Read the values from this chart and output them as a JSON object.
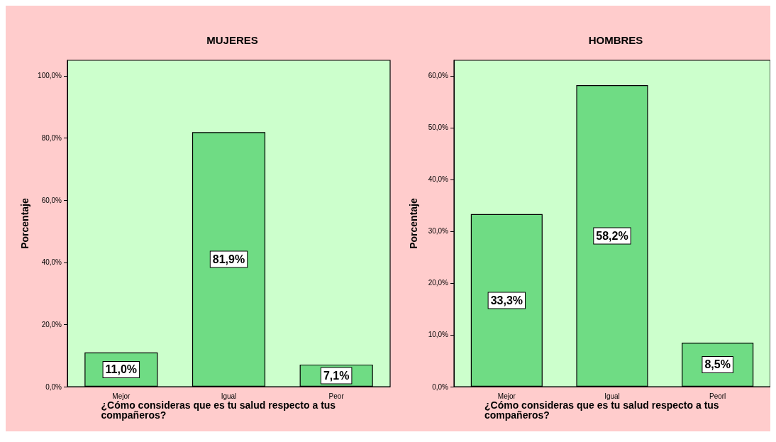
{
  "chart_data": [
    {
      "type": "bar",
      "title": "MUJERES",
      "xlabel": "¿Cómo consideras que es tu salud respecto a tus compañeros?",
      "ylabel": "Porcentaje",
      "categories": [
        "Mejor",
        "Igual",
        "Peor"
      ],
      "values": [
        11.0,
        81.9,
        7.1
      ],
      "value_labels": [
        "11,0%",
        "81,9%",
        "7,1%"
      ],
      "color": "#6fdc84",
      "ylim": [
        0,
        105
      ],
      "yticks": [
        {
          "value": 0,
          "label": "0,0%"
        },
        {
          "value": 20,
          "label": "20,0%"
        },
        {
          "value": 40,
          "label": "40,0%"
        },
        {
          "value": 60,
          "label": "60,0%"
        },
        {
          "value": 80,
          "label": "80,0%"
        },
        {
          "value": 100,
          "label": "100,0%"
        }
      ],
      "grid": false
    },
    {
      "type": "bar",
      "title": "HOMBRES",
      "xlabel": "¿Cómo consideras que es tu salud respecto a tus compañeros?",
      "ylabel": "Porcentaje",
      "categories": [
        "Mejor",
        "Igual",
        "Peorl"
      ],
      "values": [
        33.3,
        58.2,
        8.5
      ],
      "value_labels": [
        "33,3%",
        "58,2%",
        "8,5%"
      ],
      "color": "#6fdc84",
      "ylim": [
        0,
        63
      ],
      "yticks": [
        {
          "value": 0,
          "label": "0,0%"
        },
        {
          "value": 10,
          "label": "10,0%"
        },
        {
          "value": 20,
          "label": "20,0%"
        },
        {
          "value": 30,
          "label": "30,0%"
        },
        {
          "value": 40,
          "label": "40,0%"
        },
        {
          "value": 50,
          "label": "50,0%"
        },
        {
          "value": 60,
          "label": "60,0%"
        }
      ],
      "grid": false
    }
  ]
}
